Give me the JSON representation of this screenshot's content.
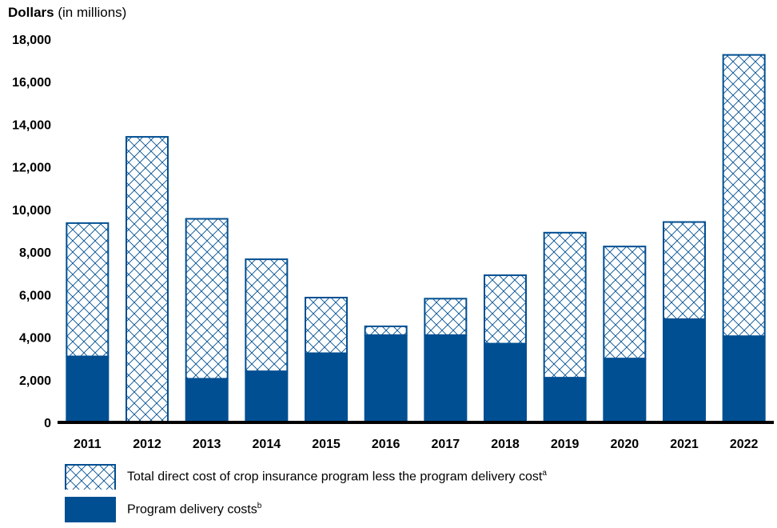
{
  "chart_data": {
    "type": "bar",
    "stacked": true,
    "title": "",
    "ylabel_bold": "Dollars",
    "ylabel_rest": " (in millions)",
    "xlabel": "",
    "ylim": [
      0,
      18000
    ],
    "y_ticks": [
      "0",
      "2,000",
      "4,000",
      "6,000",
      "8,000",
      "10,000",
      "12,000",
      "14,000",
      "16,000",
      "18,000"
    ],
    "y_tick_values": [
      0,
      2000,
      4000,
      6000,
      8000,
      10000,
      12000,
      14000,
      16000,
      18000
    ],
    "categories": [
      "2011",
      "2012",
      "2013",
      "2014",
      "2015",
      "2016",
      "2017",
      "2018",
      "2019",
      "2020",
      "2021",
      "2022"
    ],
    "series": [
      {
        "name": "Program delivery costs",
        "superscript": "b",
        "color": "#004f92",
        "pattern": "solid",
        "values": [
          3100,
          0,
          2050,
          2400,
          3250,
          4100,
          4100,
          3700,
          2100,
          3000,
          4850,
          4050
        ]
      },
      {
        "name": "Total direct cost of crop insurance program less the program delivery cost",
        "superscript": "a",
        "color": "#004f92",
        "pattern": "crosshatch",
        "values": [
          6300,
          13450,
          7550,
          5300,
          2650,
          450,
          1750,
          3250,
          6850,
          5300,
          4600,
          13250
        ]
      }
    ],
    "grid": false,
    "legend_position": "bottom"
  }
}
